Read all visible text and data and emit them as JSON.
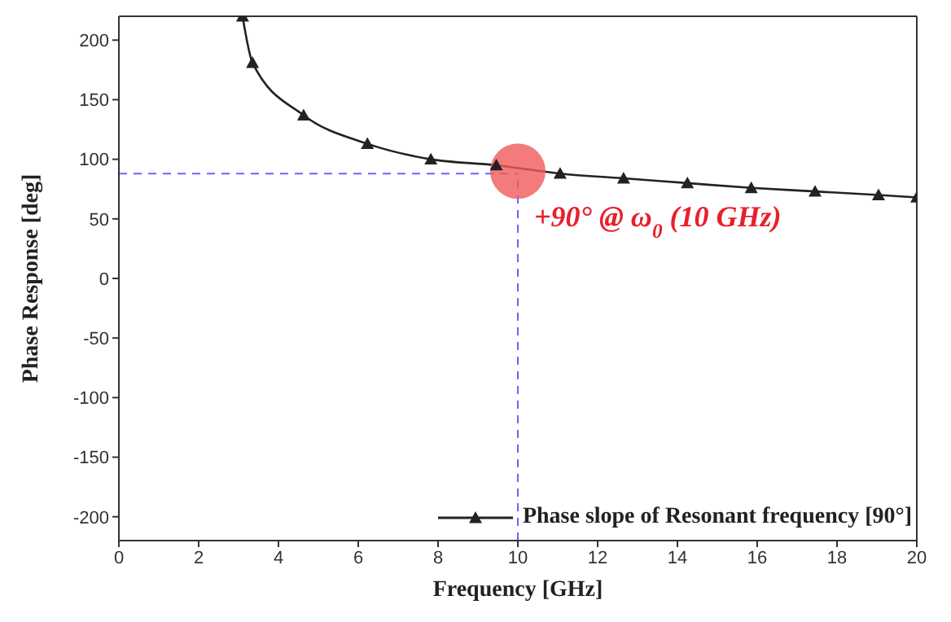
{
  "chart_data": {
    "type": "line",
    "xlabel": "Frequency [GHz]",
    "ylabel": "Phase Response [deg]",
    "xlim": [
      0,
      20
    ],
    "xticks": [
      0,
      2,
      4,
      6,
      8,
      10,
      12,
      14,
      16,
      18,
      20
    ],
    "ylim": [
      -220,
      220
    ],
    "yticks": [
      -200,
      -150,
      -100,
      -50,
      0,
      50,
      100,
      150,
      200
    ],
    "series": [
      {
        "name": "Phase slope of Resonant frequency [90°]",
        "color": "#222222",
        "x": [
          3.1,
          3.35,
          4.63,
          6.23,
          7.82,
          9.46,
          11.06,
          12.65,
          14.25,
          15.85,
          17.45,
          19.04,
          20
        ],
        "values": [
          220,
          181,
          137,
          113,
          100,
          95,
          88,
          84,
          80,
          76,
          73,
          70,
          68
        ]
      }
    ],
    "marker": "triangle",
    "legend": "bottom right",
    "ref_lines": [
      {
        "axis": "x",
        "value": 10,
        "color": "#6666ff",
        "line_style": "dashed"
      },
      {
        "axis": "y",
        "value": 88,
        "color": "#6666ff",
        "line_style": "dashed"
      }
    ],
    "annotations": [
      {
        "text": "+90° @ ω$_{0}$ (10 GHz)",
        "x": 10,
        "y": 90
      }
    ]
  }
}
